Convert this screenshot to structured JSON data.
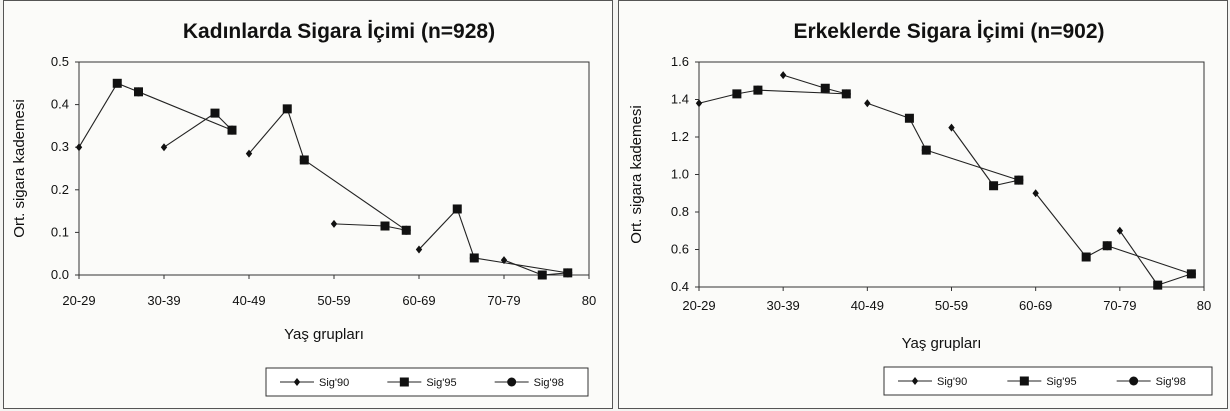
{
  "chart_data": [
    {
      "type": "line",
      "title": "Kadınlarda Sigara İçimi (n=928)",
      "xlabel": "Yaş grupları",
      "ylabel": "Ort. sigara kademesi",
      "xlim": [
        0,
        6
      ],
      "ylim": [
        0,
        0.5
      ],
      "x_tick_labels": [
        "20-29",
        "30-39",
        "40-49",
        "50-59",
        "60-69",
        "70-79",
        "80"
      ],
      "y_tick_labels": [
        "0.0",
        "0.1",
        "0.2",
        "0.3",
        "0.4",
        "0.5"
      ],
      "y_ticks": [
        0,
        0.1,
        0.2,
        0.3,
        0.4,
        0.5
      ],
      "grid": false,
      "legend_position": "bottom",
      "series": [
        {
          "name": "Sig'90",
          "marker": "diamond",
          "points": [
            [
              0,
              0.3
            ],
            [
              0.45,
              0.45
            ],
            [
              1,
              0.3
            ],
            [
              1.6,
              0.38
            ],
            [
              2,
              0.285
            ],
            [
              2.45,
              0.39
            ],
            [
              3,
              0.12
            ],
            [
              3.6,
              0.115
            ],
            [
              4,
              0.06
            ],
            [
              4.45,
              0.155
            ],
            [
              5,
              0.035
            ],
            [
              5.45,
              0.0
            ]
          ]
        },
        {
          "name": "Sig'95",
          "marker": "square",
          "points": [
            [
              0.45,
              0.45
            ],
            [
              0.7,
              0.43
            ],
            [
              1.6,
              0.38
            ],
            [
              1.8,
              0.34
            ],
            [
              2.45,
              0.39
            ],
            [
              2.65,
              0.27
            ],
            [
              3.6,
              0.115
            ],
            [
              3.85,
              0.105
            ],
            [
              4.45,
              0.155
            ],
            [
              4.65,
              0.04
            ],
            [
              5.45,
              0.0
            ],
            [
              5.75,
              0.005
            ]
          ]
        },
        {
          "name": "Sig'98",
          "marker": "circle",
          "points": [
            [
              0.7,
              0.43
            ],
            [
              1.8,
              0.34
            ],
            [
              2.65,
              0.27
            ],
            [
              3.85,
              0.105
            ],
            [
              4.65,
              0.04
            ],
            [
              5.75,
              0.005
            ]
          ]
        }
      ]
    },
    {
      "type": "line",
      "title": "Erkeklerde Sigara İçimi (n=902)",
      "xlabel": "Yaş grupları",
      "ylabel": "Ort. sigara kademesi",
      "xlim": [
        0,
        6
      ],
      "ylim": [
        0.4,
        1.6
      ],
      "x_tick_labels": [
        "20-29",
        "30-39",
        "40-49",
        "50-59",
        "60-69",
        "70-79",
        "80"
      ],
      "y_tick_labels": [
        "0.4",
        "0.6",
        "0.8",
        "1.0",
        "1.2",
        "1.4",
        "1.6"
      ],
      "y_ticks": [
        0.4,
        0.6,
        0.8,
        1.0,
        1.2,
        1.4,
        1.6
      ],
      "grid": false,
      "legend_position": "bottom",
      "series": [
        {
          "name": "Sig'90",
          "marker": "diamond",
          "points": [
            [
              0,
              1.38
            ],
            [
              0.45,
              1.43
            ],
            [
              1,
              1.53
            ],
            [
              1.5,
              1.46
            ],
            [
              2,
              1.38
            ],
            [
              2.5,
              1.3
            ],
            [
              3,
              1.25
            ],
            [
              3.5,
              0.94
            ],
            [
              4,
              0.9
            ],
            [
              4.6,
              0.56
            ],
            [
              5,
              0.7
            ],
            [
              5.45,
              0.41
            ]
          ]
        },
        {
          "name": "Sig'95",
          "marker": "square",
          "points": [
            [
              0.45,
              1.43
            ],
            [
              0.7,
              1.45
            ],
            [
              1.5,
              1.46
            ],
            [
              1.75,
              1.43
            ],
            [
              2.5,
              1.3
            ],
            [
              2.7,
              1.13
            ],
            [
              3.5,
              0.94
            ],
            [
              3.8,
              0.97
            ],
            [
              4.6,
              0.56
            ],
            [
              4.85,
              0.62
            ],
            [
              5.45,
              0.41
            ],
            [
              5.85,
              0.47
            ]
          ]
        },
        {
          "name": "Sig'98",
          "marker": "circle",
          "points": [
            [
              0.7,
              1.45
            ],
            [
              1.75,
              1.43
            ],
            [
              2.7,
              1.13
            ],
            [
              3.8,
              0.97
            ],
            [
              4.85,
              0.62
            ],
            [
              5.85,
              0.47
            ]
          ]
        }
      ]
    }
  ]
}
